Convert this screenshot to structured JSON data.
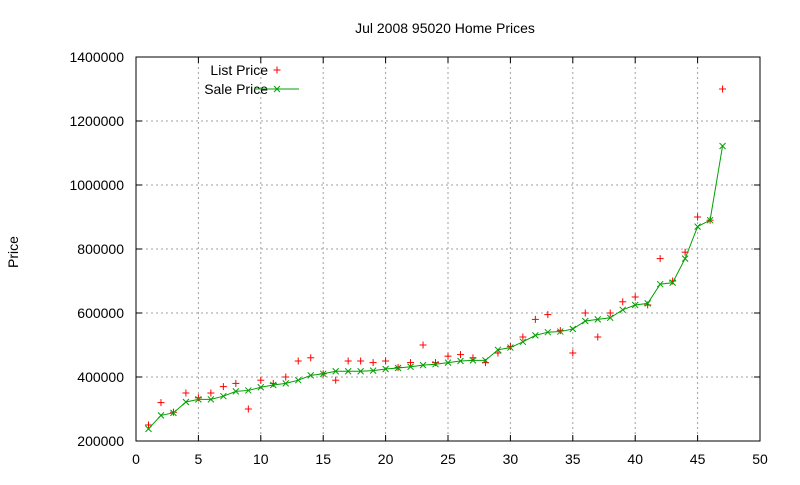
{
  "chart_data": {
    "type": "scatter",
    "title": "Jul 2008 95020 Home Prices",
    "xlabel": "",
    "ylabel": "Price",
    "xlim": [
      0,
      50
    ],
    "ylim": [
      200000,
      1400000
    ],
    "xticks": [
      0,
      5,
      10,
      15,
      20,
      25,
      30,
      35,
      40,
      45,
      50
    ],
    "yticks": [
      200000,
      400000,
      600000,
      800000,
      1000000,
      1200000,
      1400000
    ],
    "grid": true,
    "legend_position": "top-left",
    "series": [
      {
        "name": "List Price",
        "style": "points",
        "marker": "plus",
        "color": "#ff0000",
        "x": [
          1,
          2,
          3,
          4,
          5,
          6,
          7,
          8,
          9,
          10,
          11,
          12,
          13,
          14,
          15,
          16,
          17,
          18,
          19,
          20,
          21,
          22,
          23,
          24,
          25,
          26,
          27,
          28,
          29,
          30,
          31,
          32,
          33,
          34,
          35,
          36,
          37,
          38,
          39,
          40,
          41,
          42,
          43,
          44,
          45,
          46,
          47
        ],
        "y": [
          250000,
          320000,
          290000,
          350000,
          335000,
          350000,
          370000,
          380000,
          300000,
          390000,
          380000,
          400000,
          450000,
          460000,
          410000,
          390000,
          450000,
          450000,
          445000,
          450000,
          430000,
          445000,
          500000,
          445000,
          465000,
          470000,
          460000,
          445000,
          475000,
          495000,
          525000,
          580000,
          595000,
          545000,
          475000,
          600000,
          525000,
          600000,
          635000,
          650000,
          625000,
          770000,
          700000,
          790000,
          900000,
          890000,
          1300000
        ]
      },
      {
        "name": "Sale Price",
        "style": "linespoints",
        "marker": "cross",
        "color": "#00a000",
        "x": [
          1,
          2,
          3,
          4,
          5,
          6,
          7,
          8,
          9,
          10,
          11,
          12,
          13,
          14,
          15,
          16,
          17,
          18,
          19,
          20,
          21,
          22,
          23,
          24,
          25,
          26,
          27,
          28,
          29,
          30,
          31,
          32,
          33,
          34,
          35,
          36,
          37,
          38,
          39,
          40,
          41,
          42,
          43,
          44,
          45,
          46,
          47
        ],
        "y": [
          238000,
          280000,
          288000,
          322000,
          330000,
          330000,
          340000,
          355000,
          358000,
          368000,
          375000,
          380000,
          390000,
          405000,
          410000,
          418000,
          418000,
          418000,
          420000,
          425000,
          428000,
          432000,
          437000,
          440000,
          445000,
          450000,
          452000,
          452000,
          485000,
          492000,
          510000,
          530000,
          540000,
          542000,
          550000,
          575000,
          580000,
          585000,
          610000,
          625000,
          630000,
          690000,
          695000,
          770000,
          870000,
          890000,
          1122000
        ]
      }
    ]
  }
}
